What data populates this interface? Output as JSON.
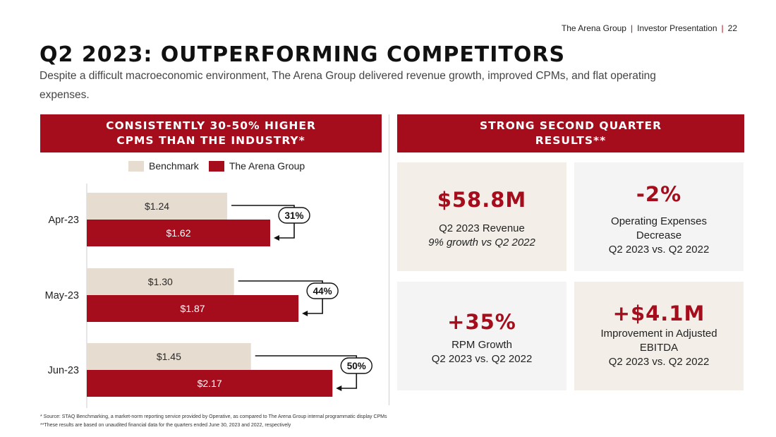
{
  "header": {
    "company": "The Arena Group",
    "doc": "Investor Presentation",
    "page": "22",
    "sep": "|",
    "title": "Q2 2023: OUTPERFORMING COMPETITORS",
    "subtitle": "Despite a difficult macroeconomic environment, The Arena Group delivered revenue growth, improved CPMs, and flat operating expenses."
  },
  "left_banner": "CONSISTENTLY 30-50% HIGHER\nCPMS THAN THE INDUSTRY*",
  "right_banner": "STRONG SECOND QUARTER\nRESULTS**",
  "colors": {
    "benchmark": "#e6dccf",
    "arena": "#a50d1c"
  },
  "chart_data": {
    "type": "bar",
    "orientation": "horizontal",
    "categories": [
      "Apr-23",
      "May-23",
      "Jun-23"
    ],
    "series": [
      {
        "name": "Benchmark",
        "values": [
          1.24,
          1.3,
          1.45
        ],
        "labels": [
          "$1.24",
          "$1.30",
          "$1.45"
        ]
      },
      {
        "name": "The Arena Group",
        "values": [
          1.62,
          1.87,
          2.17
        ],
        "labels": [
          "$1.62",
          "$1.87",
          "$2.17"
        ]
      }
    ],
    "uplift_labels": [
      "31%",
      "44%",
      "50%"
    ],
    "legend": [
      "Benchmark",
      "The Arena Group"
    ],
    "xlim": [
      0,
      2.5
    ]
  },
  "cards": [
    {
      "big": "$58.8M",
      "line1": "Q2 2023 Revenue",
      "line2": "9% growth vs Q2 2022"
    },
    {
      "big": "-2%",
      "line1": "Operating Expenses\nDecrease\nQ2 2023 vs. Q2 2022"
    },
    {
      "big": "+35%",
      "line1": "RPM Growth\nQ2 2023 vs. Q2 2022"
    },
    {
      "big": "+$4.1M",
      "line1": "Improvement in Adjusted\nEBITDA\nQ2 2023 vs. Q2 2022"
    }
  ],
  "footnotes": [
    "* Source: STAQ Benchmarking, a market-norm reporting service provided by Operative, as compared to The Arena Group internal programmatic display CPMs",
    "**These results are based on unaudited financial data for the quarters ended June 30, 2023 and 2022, respectively"
  ]
}
